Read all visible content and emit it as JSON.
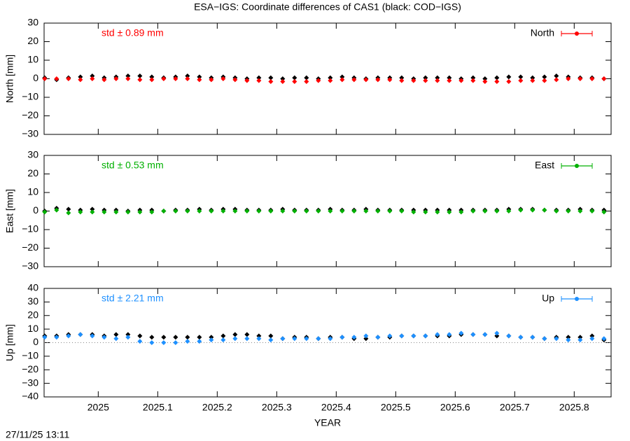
{
  "title": "ESA−IGS: Coordinate differences of CAS1 (black: COD−IGS)",
  "footer": "27/11/25 13:11",
  "chart_data": [
    {
      "type": "scatter",
      "ylabel": "North [mm]",
      "annotation": "std ± 0.89 mm",
      "legend": "top-right",
      "xlim": [
        2024.909,
        2025.862
      ],
      "ylim": [
        -30,
        30
      ],
      "yticks": [
        {
          "value": -30,
          "label": "−30"
        },
        {
          "value": -20,
          "label": "−20"
        },
        {
          "value": -10,
          "label": "−10"
        },
        0,
        10,
        20,
        30
      ],
      "x": [
        2024.91,
        2024.93,
        2024.95,
        2024.97,
        2024.99,
        2025.01,
        2025.03,
        2025.05,
        2025.07,
        2025.09,
        2025.11,
        2025.13,
        2025.15,
        2025.17,
        2025.19,
        2025.21,
        2025.23,
        2025.25,
        2025.27,
        2025.29,
        2025.31,
        2025.33,
        2025.35,
        2025.37,
        2025.39,
        2025.41,
        2025.43,
        2025.45,
        2025.47,
        2025.49,
        2025.51,
        2025.53,
        2025.55,
        2025.57,
        2025.59,
        2025.61,
        2025.63,
        2025.65,
        2025.67,
        2025.69,
        2025.71,
        2025.73,
        2025.75,
        2025.77,
        2025.79,
        2025.81,
        2025.83,
        2025.85
      ],
      "series": [
        {
          "color": "#000000",
          "values": [
            0.5,
            -0.5,
            0.5,
            1,
            1.5,
            0.5,
            1,
            1.5,
            1.5,
            1,
            0.5,
            1,
            1.5,
            1,
            0.5,
            1,
            0.5,
            0,
            0.5,
            0.5,
            0,
            0.5,
            0.5,
            0,
            0.5,
            1,
            0.5,
            0,
            0.5,
            0.5,
            0.5,
            0,
            0.5,
            0.5,
            0.5,
            0,
            0.5,
            0,
            0.5,
            1,
            1,
            0.5,
            1,
            1.5,
            1,
            0.5,
            0.5,
            0
          ]
        },
        {
          "name": "North",
          "color": "#ff0000",
          "values": [
            0,
            0,
            0,
            -0.5,
            0,
            -0.5,
            0,
            0,
            -0.5,
            -0.5,
            0,
            0,
            0,
            -0.5,
            -0.5,
            0,
            -0.5,
            -1,
            -1,
            -1.5,
            -1.5,
            -1.5,
            -1.5,
            -1,
            -1,
            -0.5,
            -0.5,
            -0.5,
            -0.5,
            -0.5,
            -1,
            -1,
            -1,
            -1,
            -1,
            -1,
            -1,
            -1.5,
            -1.5,
            -1.5,
            -1,
            -1,
            -1,
            -0.5,
            0,
            0,
            0,
            0
          ]
        }
      ]
    },
    {
      "type": "scatter",
      "ylabel": "East [mm]",
      "annotation": "std ± 0.53 mm",
      "legend": "top-right",
      "xlim": [
        2024.909,
        2025.862
      ],
      "ylim": [
        -30,
        30
      ],
      "yticks": [
        {
          "value": -30,
          "label": "−30"
        },
        {
          "value": -20,
          "label": "−20"
        },
        {
          "value": -10,
          "label": "−10"
        },
        0,
        10,
        20,
        30
      ],
      "x": [
        2024.91,
        2024.93,
        2024.95,
        2024.97,
        2024.99,
        2025.01,
        2025.03,
        2025.05,
        2025.07,
        2025.09,
        2025.11,
        2025.13,
        2025.15,
        2025.17,
        2025.19,
        2025.21,
        2025.23,
        2025.25,
        2025.27,
        2025.29,
        2025.31,
        2025.33,
        2025.35,
        2025.37,
        2025.39,
        2025.41,
        2025.43,
        2025.45,
        2025.47,
        2025.49,
        2025.51,
        2025.53,
        2025.55,
        2025.57,
        2025.59,
        2025.61,
        2025.63,
        2025.65,
        2025.67,
        2025.69,
        2025.71,
        2025.73,
        2025.75,
        2025.77,
        2025.79,
        2025.81,
        2025.83,
        2025.85
      ],
      "series": [
        {
          "color": "#000000",
          "values": [
            0,
            1.5,
            1,
            0.5,
            1,
            0.5,
            0.5,
            0,
            0.5,
            0.5,
            0,
            0.5,
            0.5,
            1,
            0.5,
            1,
            1,
            0.5,
            0.5,
            0.5,
            1,
            0.5,
            0.5,
            0.5,
            1,
            0.5,
            0.5,
            1,
            0.5,
            0.5,
            0.5,
            0.5,
            0.5,
            0.5,
            0.5,
            0.5,
            0.5,
            0.5,
            0.5,
            1,
            1,
            1,
            0.5,
            0.5,
            0.5,
            1,
            0.5,
            0.5
          ]
        },
        {
          "name": "East",
          "color": "#00b000",
          "values": [
            -0.5,
            0.5,
            -1,
            -0.5,
            -0.5,
            -0.5,
            -0.5,
            -0.5,
            -0.5,
            -0.5,
            0,
            0,
            0,
            0,
            0,
            0,
            0,
            0,
            0,
            0,
            0,
            0,
            0,
            0,
            0,
            0,
            0,
            0,
            0,
            0,
            0,
            -0.5,
            -0.5,
            -0.5,
            -0.5,
            -0.5,
            0,
            0,
            0,
            0,
            0.5,
            0.5,
            0.5,
            0,
            0,
            0,
            0,
            -0.5
          ]
        }
      ]
    },
    {
      "type": "scatter",
      "ylabel": "Up [mm]",
      "xlabel": "YEAR",
      "annotation": "std ± 2.21 mm",
      "legend": "top-right",
      "zero_line": true,
      "xlim": [
        2024.909,
        2025.862
      ],
      "ylim": [
        -40,
        40
      ],
      "xticks": [
        2025,
        2025.1,
        2025.2,
        2025.3,
        2025.4,
        2025.5,
        2025.6,
        2025.7,
        2025.8
      ],
      "yticks": [
        {
          "value": -40,
          "label": "−40"
        },
        {
          "value": -30,
          "label": "−30"
        },
        {
          "value": -20,
          "label": "−20"
        },
        {
          "value": -10,
          "label": "−10"
        },
        0,
        10,
        20,
        30,
        40
      ],
      "x": [
        2024.91,
        2024.93,
        2024.95,
        2024.97,
        2024.99,
        2025.01,
        2025.03,
        2025.05,
        2025.07,
        2025.09,
        2025.11,
        2025.13,
        2025.15,
        2025.17,
        2025.19,
        2025.21,
        2025.23,
        2025.25,
        2025.27,
        2025.29,
        2025.31,
        2025.33,
        2025.35,
        2025.37,
        2025.39,
        2025.41,
        2025.43,
        2025.45,
        2025.47,
        2025.49,
        2025.51,
        2025.53,
        2025.55,
        2025.57,
        2025.59,
        2025.61,
        2025.63,
        2025.65,
        2025.67,
        2025.69,
        2025.71,
        2025.73,
        2025.75,
        2025.77,
        2025.79,
        2025.81,
        2025.83,
        2025.85
      ],
      "series": [
        {
          "color": "#000000",
          "values": [
            5,
            5,
            6,
            6,
            6,
            5,
            6,
            6,
            5,
            4,
            4,
            4,
            4,
            4,
            4,
            5,
            6,
            6,
            5,
            5,
            3,
            4,
            4,
            3,
            4,
            4,
            3,
            3,
            4,
            4,
            5,
            5,
            5,
            5,
            5,
            6,
            6,
            6,
            5,
            5,
            4,
            4,
            3,
            4,
            4,
            4,
            5,
            2
          ]
        },
        {
          "name": "Up",
          "color": "#1e90ff",
          "values": [
            4,
            4,
            5,
            6,
            5,
            4,
            3,
            4,
            1,
            0,
            0,
            0,
            1,
            1,
            2,
            2,
            3,
            3,
            3,
            2,
            3,
            3,
            3,
            3,
            3,
            4,
            4,
            5,
            4,
            5,
            5,
            5,
            5,
            6,
            6,
            7,
            6,
            6,
            7,
            5,
            4,
            4,
            3,
            3,
            2,
            2,
            3,
            3
          ]
        }
      ]
    }
  ]
}
